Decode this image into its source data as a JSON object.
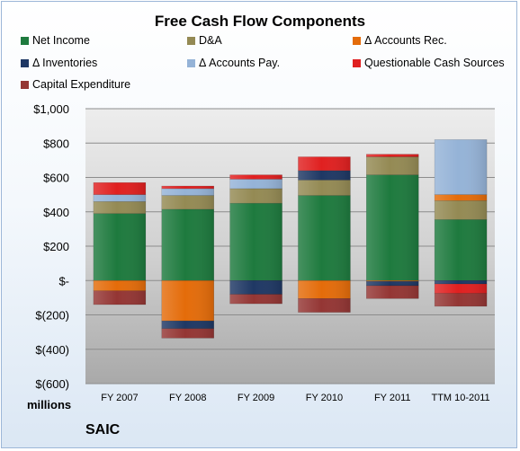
{
  "title": "Free Cash Flow Components",
  "units_label": "millions",
  "company": "SAIC",
  "legend": [
    {
      "key": "net_income",
      "label": "Net Income",
      "color": "#1e7a3e"
    },
    {
      "key": "da",
      "label": "D&A",
      "color": "#948a54"
    },
    {
      "key": "ar",
      "label": "Δ Accounts Rec.",
      "color": "#e46c0a"
    },
    {
      "key": "inv",
      "label": "Δ Inventories",
      "color": "#1f3864"
    },
    {
      "key": "ap",
      "label": "Δ Accounts Pay.",
      "color": "#95b3d7"
    },
    {
      "key": "qcs",
      "label": "Questionable Cash Sources",
      "color": "#e02020"
    },
    {
      "key": "capex",
      "label": "Capital Expenditure",
      "color": "#943634"
    }
  ],
  "chart_data": {
    "type": "bar",
    "stacked": true,
    "categories": [
      "FY 2007",
      "FY 2008",
      "FY 2009",
      "FY 2010",
      "FY 2011",
      "TTM 10-2011"
    ],
    "ylim": [
      -600,
      1000
    ],
    "yticks": [
      {
        "value": 1000,
        "label": "$1,000"
      },
      {
        "value": 800,
        "label": "$800"
      },
      {
        "value": 600,
        "label": "$600"
      },
      {
        "value": 400,
        "label": "$400"
      },
      {
        "value": 200,
        "label": "$200"
      },
      {
        "value": 0,
        "label": "$-"
      },
      {
        "value": -200,
        "label": "$(200)"
      },
      {
        "value": -400,
        "label": "$(400)"
      },
      {
        "value": -600,
        "label": "$(600)"
      }
    ],
    "grid": true,
    "series": [
      {
        "name": "Net Income",
        "color": "#1e7a3e",
        "values": [
          390,
          415,
          450,
          495,
          615,
          355
        ]
      },
      {
        "name": "D&A",
        "color": "#948a54",
        "values": [
          70,
          80,
          85,
          90,
          105,
          110
        ]
      },
      {
        "name": "Δ Accounts Rec.",
        "color": "#e46c0a",
        "values": [
          -60,
          -235,
          0,
          -105,
          -5,
          35
        ]
      },
      {
        "name": "Δ Inventories",
        "color": "#1f3864",
        "values": [
          0,
          -45,
          -80,
          55,
          -25,
          -20
        ]
      },
      {
        "name": "Δ Accounts Pay.",
        "color": "#95b3d7",
        "values": [
          40,
          40,
          55,
          0,
          0,
          320
        ]
      },
      {
        "name": "Questionable Cash Sources",
        "color": "#e02020",
        "values": [
          70,
          15,
          25,
          80,
          15,
          -55
        ]
      },
      {
        "name": "Capital Expenditure",
        "color": "#943634",
        "values": [
          -80,
          -55,
          -55,
          -80,
          -75,
          -75
        ]
      }
    ]
  }
}
